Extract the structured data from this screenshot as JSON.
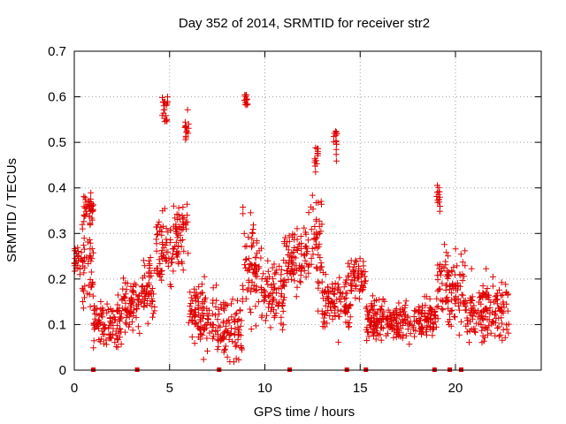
{
  "chart_data": {
    "type": "scatter",
    "title": "Day 352 of 2014, SRMTID for receiver str2",
    "xlabel": "GPS time / hours",
    "ylabel": "SRMTID / TECUs",
    "xlim": [
      0,
      24.5
    ],
    "ylim": [
      0,
      0.7
    ],
    "xticks": [
      0,
      5,
      10,
      15,
      20
    ],
    "yticks": [
      0,
      0.1,
      0.2,
      0.3,
      0.4,
      0.5,
      0.6,
      0.7
    ],
    "grid": true,
    "marker": "+",
    "color": "#e00000",
    "data_points_note": "Several thousand points; represented by the cluster envelope below (x = GPS hours, y = typical SRMTID and spread).",
    "clusters": [
      {
        "x_from": 0.0,
        "x_to": 0.3,
        "center": 0.24,
        "spread": 0.03
      },
      {
        "x_from": 0.3,
        "x_to": 1.0,
        "center": 0.22,
        "spread": 0.09
      },
      {
        "x_from": 0.5,
        "x_to": 1.0,
        "center": 0.36,
        "spread": 0.03
      },
      {
        "x_from": 1.0,
        "x_to": 2.5,
        "center": 0.1,
        "spread": 0.05
      },
      {
        "x_from": 2.5,
        "x_to": 3.5,
        "center": 0.14,
        "spread": 0.06
      },
      {
        "x_from": 3.5,
        "x_to": 4.3,
        "center": 0.18,
        "spread": 0.06
      },
      {
        "x_from": 4.3,
        "x_to": 5.2,
        "center": 0.26,
        "spread": 0.07
      },
      {
        "x_from": 4.6,
        "x_to": 4.9,
        "center": 0.57,
        "spread": 0.04
      },
      {
        "x_from": 5.2,
        "x_to": 6.0,
        "center": 0.3,
        "spread": 0.07
      },
      {
        "x_from": 5.8,
        "x_to": 6.0,
        "center": 0.53,
        "spread": 0.03
      },
      {
        "x_from": 6.0,
        "x_to": 7.5,
        "center": 0.12,
        "spread": 0.07
      },
      {
        "x_from": 7.5,
        "x_to": 8.8,
        "center": 0.09,
        "spread": 0.06
      },
      {
        "x_from": 8.8,
        "x_to": 9.8,
        "center": 0.22,
        "spread": 0.1
      },
      {
        "x_from": 8.9,
        "x_to": 9.1,
        "center": 0.6,
        "spread": 0.02
      },
      {
        "x_from": 9.8,
        "x_to": 11.0,
        "center": 0.17,
        "spread": 0.07
      },
      {
        "x_from": 11.0,
        "x_to": 12.3,
        "center": 0.24,
        "spread": 0.06
      },
      {
        "x_from": 12.3,
        "x_to": 13.0,
        "center": 0.28,
        "spread": 0.1
      },
      {
        "x_from": 12.6,
        "x_to": 12.8,
        "center": 0.47,
        "spread": 0.03
      },
      {
        "x_from": 13.0,
        "x_to": 14.5,
        "center": 0.15,
        "spread": 0.06
      },
      {
        "x_from": 13.6,
        "x_to": 13.8,
        "center": 0.5,
        "spread": 0.04
      },
      {
        "x_from": 14.5,
        "x_to": 15.3,
        "center": 0.2,
        "spread": 0.04
      },
      {
        "x_from": 15.3,
        "x_to": 19.0,
        "center": 0.11,
        "spread": 0.04
      },
      {
        "x_from": 19.0,
        "x_to": 20.5,
        "center": 0.18,
        "spread": 0.09
      },
      {
        "x_from": 19.0,
        "x_to": 19.2,
        "center": 0.38,
        "spread": 0.03
      },
      {
        "x_from": 20.5,
        "x_to": 22.8,
        "center": 0.13,
        "spread": 0.06
      }
    ],
    "axis_markers_x": [
      1.0,
      3.3,
      7.6,
      11.3,
      14.3,
      15.3,
      18.9,
      19.7,
      20.3
    ]
  }
}
